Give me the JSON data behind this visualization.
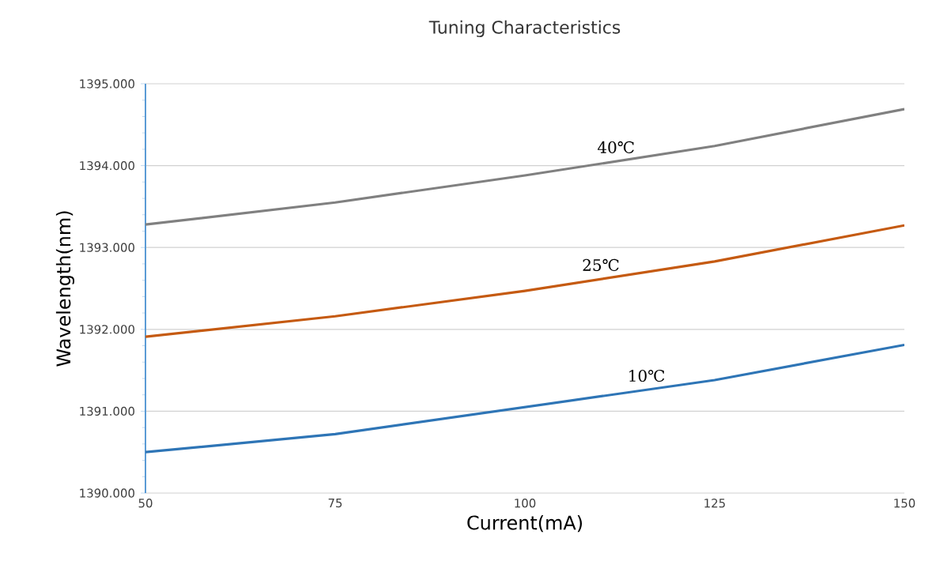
{
  "chart_data": {
    "type": "line",
    "title": "Tuning Characteristics",
    "xlabel": "Current(mA)",
    "ylabel": "Wavelength(nm)",
    "x": [
      50,
      75,
      100,
      125,
      150
    ],
    "series": [
      {
        "name": "10℃",
        "color": "#2e75b6",
        "values": [
          1390.5,
          1390.72,
          1391.05,
          1391.38,
          1391.81
        ]
      },
      {
        "name": "25℃",
        "color": "#c55a11",
        "values": [
          1391.91,
          1392.16,
          1392.47,
          1392.83,
          1393.27
        ]
      },
      {
        "name": "40℃",
        "color": "#808080",
        "values": [
          1393.28,
          1393.55,
          1393.88,
          1394.24,
          1394.69
        ]
      }
    ],
    "xlim": [
      50,
      150
    ],
    "xticks": [
      50,
      75,
      100,
      125,
      150
    ],
    "ylim": [
      1390,
      1395
    ],
    "yticks": [
      {
        "value": 1390,
        "label": "1390.000"
      },
      {
        "value": 1391,
        "label": "1391.000"
      },
      {
        "value": 1392,
        "label": "1392.000"
      },
      {
        "value": 1393,
        "label": "1393.000"
      },
      {
        "value": 1394,
        "label": "1394.000"
      },
      {
        "value": 1395,
        "label": "1395.000"
      }
    ],
    "grid": "y",
    "legend": false,
    "marker": "none",
    "line_style": "solid"
  }
}
